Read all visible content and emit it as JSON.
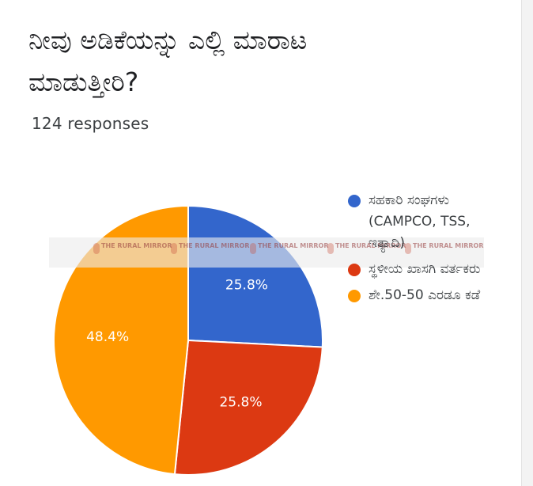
{
  "form": {
    "title": "ನೀವು ಅಡಿಕೆಯನ್ನು ಎಲ್ಲಿ ಮಾರಾಟ ಮಾಡುತ್ತೀರಿ?",
    "responses": "124 responses"
  },
  "watermark": {
    "text": "THE RURAL MIRROR"
  },
  "chart_data": {
    "type": "pie",
    "title": "",
    "categories": [
      "ಸಹಕಾರಿ ಸಂಘಗಳು (CAMPCO, TSS, ಇತ್ಯಾದಿ)",
      "ಸ್ಥಳೀಯ ಖಾಸಗಿ ವರ್ತಕರು",
      "ಶೇ.50-50 ಎರಡೂ ಕಡೆ"
    ],
    "values": [
      25.8,
      25.8,
      48.4
    ],
    "labels": [
      "25.8%",
      "25.8%",
      "48.4%"
    ],
    "colors": [
      "#3366cc",
      "#dc3912",
      "#ff9900"
    ],
    "legend_position": "right"
  }
}
